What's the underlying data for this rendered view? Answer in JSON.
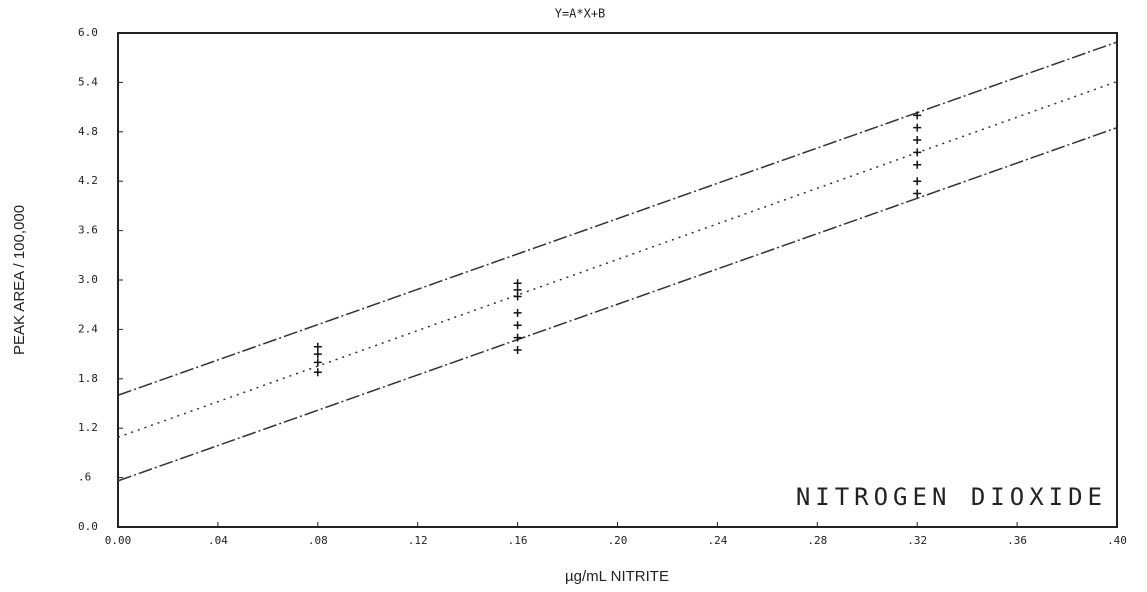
{
  "chart_data": {
    "type": "line",
    "title": "Y=A*X+B",
    "annotation": "NITROGEN DIOXIDE",
    "x_label": "µg/mL NITRITE",
    "y_label": "PEAK AREA / 100,000",
    "xlim": [
      0,
      0.4
    ],
    "ylim": [
      0,
      6
    ],
    "xticks": [
      {
        "value": 0,
        "label": "0.00"
      },
      {
        "value": 0.04,
        "label": ".04"
      },
      {
        "value": 0.08,
        "label": ".08"
      },
      {
        "value": 0.12,
        "label": ".12"
      },
      {
        "value": 0.16,
        "label": ".16"
      },
      {
        "value": 0.2,
        "label": ".20"
      },
      {
        "value": 0.24,
        "label": ".24"
      },
      {
        "value": 0.28,
        "label": ".28"
      },
      {
        "value": 0.32,
        "label": ".32"
      },
      {
        "value": 0.36,
        "label": ".36"
      },
      {
        "value": 0.4,
        "label": ".40"
      }
    ],
    "yticks": [
      {
        "value": 0,
        "label": "0.0"
      },
      {
        "value": 0.6,
        "label": ".6"
      },
      {
        "value": 1.2,
        "label": "1.2"
      },
      {
        "value": 1.8,
        "label": "1.8"
      },
      {
        "value": 2.4,
        "label": "2.4"
      },
      {
        "value": 3,
        "label": "3.0"
      },
      {
        "value": 3.6,
        "label": "3.6"
      },
      {
        "value": 4.2,
        "label": "4.2"
      },
      {
        "value": 4.8,
        "label": "4.8"
      },
      {
        "value": 5.4,
        "label": "5.4"
      },
      {
        "value": 6,
        "label": "6.0"
      }
    ],
    "series": [
      {
        "style": "dashdot",
        "color": "#333333",
        "x": [
          0,
          0.4
        ],
        "values": [
          1.6,
          5.89
        ]
      },
      {
        "style": "dotted",
        "color": "#333333",
        "x": [
          0,
          0.4
        ],
        "values": [
          1.09,
          5.41
        ]
      },
      {
        "style": "dashdot",
        "color": "#333333",
        "x": [
          0,
          0.4
        ],
        "values": [
          0.56,
          4.85
        ]
      },
      {
        "style": "markers",
        "color": "#111111",
        "x": [
          0.08,
          0.08,
          0.08,
          0.08,
          0.16,
          0.16,
          0.16,
          0.16,
          0.16,
          0.16,
          0.16,
          0.32,
          0.32,
          0.32,
          0.32,
          0.32,
          0.32,
          0.32
        ],
        "values": [
          1.88,
          2.0,
          2.1,
          2.19,
          2.15,
          2.3,
          2.45,
          2.6,
          2.8,
          2.88,
          2.96,
          4.05,
          4.2,
          4.4,
          4.55,
          4.7,
          4.85,
          5.0
        ]
      }
    ]
  }
}
